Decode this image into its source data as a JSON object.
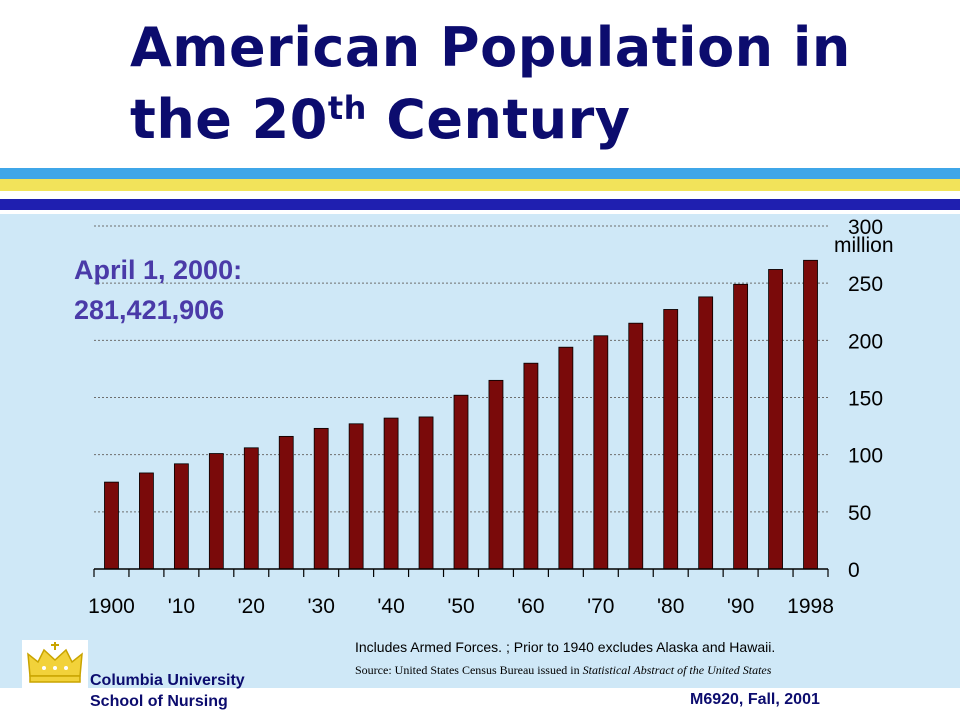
{
  "slide": {
    "title_line1": "American Population in",
    "title_line2_prefix": "the 20",
    "title_line2_sup": "th",
    "title_line2_suffix": " Century",
    "callout_line1": "April 1, 2000:",
    "callout_line2": "281,421,906",
    "note": "Includes Armed Forces. ; Prior to 1940 excludes Alaska and Hawaii.",
    "source_prefix": "Source: United States Census Bureau issued in ",
    "source_italic": "Statistical Abstract of the United States",
    "footer_line1": "Columbia University",
    "footer_line2": "School of Nursing",
    "footer_right": "M6920, Fall, 2001",
    "logo_icon": "crown-icon"
  },
  "colors": {
    "title": "#0c0c6e",
    "callout": "#4a3aa8",
    "panel": "#cfe8f7",
    "bar": "#7a0a0a",
    "stripes": [
      "#3fa6e8",
      "#f2e35a",
      "#1f1fb0"
    ]
  },
  "chart_data": {
    "type": "bar",
    "categories": [
      "1900",
      "1905",
      "1910",
      "1915",
      "1920",
      "1925",
      "1930",
      "1935",
      "1940",
      "1945",
      "1950",
      "1955",
      "1960",
      "1965",
      "1970",
      "1975",
      "1980",
      "1985",
      "1990",
      "1995",
      "1998"
    ],
    "values": [
      76,
      84,
      92,
      101,
      106,
      116,
      123,
      127,
      132,
      133,
      152,
      165,
      180,
      194,
      204,
      215,
      227,
      238,
      249,
      262,
      270
    ],
    "x_tick_labels": [
      "1900",
      "'10",
      "'20",
      "'30",
      "'40",
      "'50",
      "'60",
      "'70",
      "'80",
      "'90",
      "1998"
    ],
    "y_ticks": [
      "0",
      "50",
      "100",
      "150",
      "200",
      "250",
      "300"
    ],
    "y_unit_label": "million",
    "ylim": [
      0,
      300
    ],
    "grid": true,
    "y_axis_side": "right",
    "title": "",
    "xlabel": "",
    "ylabel": ""
  }
}
